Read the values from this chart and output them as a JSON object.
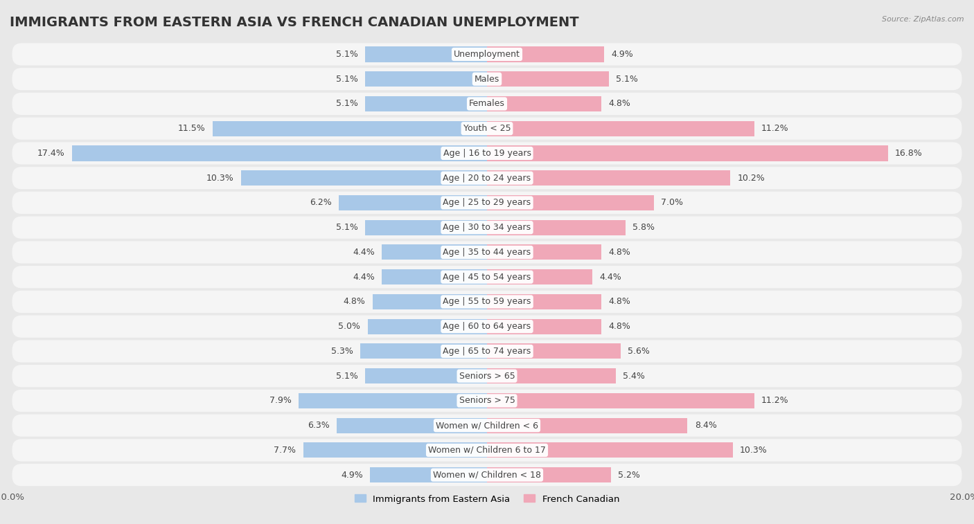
{
  "title": "IMMIGRANTS FROM EASTERN ASIA VS FRENCH CANADIAN UNEMPLOYMENT",
  "source": "Source: ZipAtlas.com",
  "categories": [
    "Unemployment",
    "Males",
    "Females",
    "Youth < 25",
    "Age | 16 to 19 years",
    "Age | 20 to 24 years",
    "Age | 25 to 29 years",
    "Age | 30 to 34 years",
    "Age | 35 to 44 years",
    "Age | 45 to 54 years",
    "Age | 55 to 59 years",
    "Age | 60 to 64 years",
    "Age | 65 to 74 years",
    "Seniors > 65",
    "Seniors > 75",
    "Women w/ Children < 6",
    "Women w/ Children 6 to 17",
    "Women w/ Children < 18"
  ],
  "left_values": [
    5.1,
    5.1,
    5.1,
    11.5,
    17.4,
    10.3,
    6.2,
    5.1,
    4.4,
    4.4,
    4.8,
    5.0,
    5.3,
    5.1,
    7.9,
    6.3,
    7.7,
    4.9
  ],
  "right_values": [
    4.9,
    5.1,
    4.8,
    11.2,
    16.8,
    10.2,
    7.0,
    5.8,
    4.8,
    4.4,
    4.8,
    4.8,
    5.6,
    5.4,
    11.2,
    8.4,
    10.3,
    5.2
  ],
  "left_color": "#a8c8e8",
  "right_color": "#f0a8b8",
  "left_label": "Immigrants from Eastern Asia",
  "right_label": "French Canadian",
  "xlim": 20.0,
  "background_color": "#e8e8e8",
  "row_bg_color": "#f5f5f5",
  "title_fontsize": 14,
  "label_fontsize": 9,
  "value_fontsize": 9
}
